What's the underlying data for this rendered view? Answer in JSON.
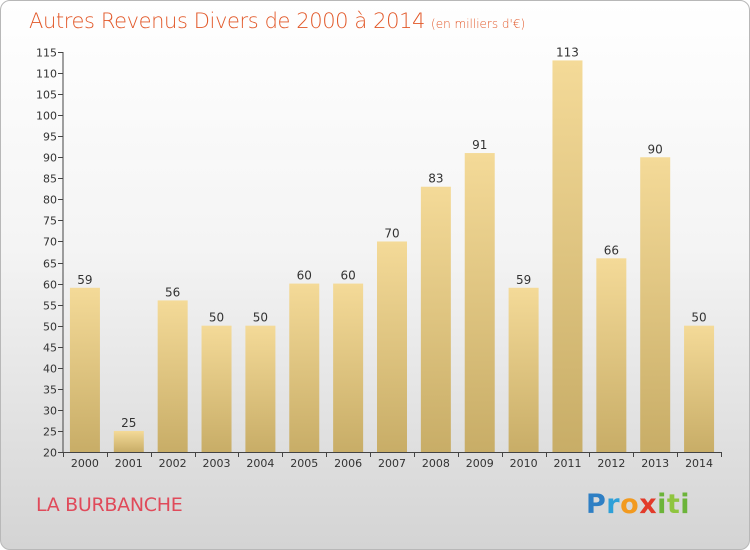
{
  "title": "Autres Revenus Divers de 2000 à 2014",
  "subtitle": "(en milliers d'€)",
  "commune": "LA BURBANCHE",
  "brand": "Proxiti",
  "colors": {
    "title": "#e2592a",
    "commune": "#e04a5a",
    "bar_top": "#f4da98",
    "bar_bottom": "#c8ad67",
    "axis": "#444444"
  },
  "chart_data": {
    "type": "bar",
    "categories": [
      "2000",
      "2001",
      "2002",
      "2003",
      "2004",
      "2005",
      "2006",
      "2007",
      "2008",
      "2009",
      "2010",
      "2011",
      "2012",
      "2013",
      "2014"
    ],
    "values": [
      59,
      25,
      56,
      50,
      50,
      60,
      60,
      70,
      83,
      91,
      59,
      113,
      66,
      90,
      50
    ],
    "ylim": [
      20,
      115
    ],
    "yticks": [
      20,
      25,
      30,
      35,
      40,
      45,
      50,
      55,
      60,
      65,
      70,
      75,
      80,
      85,
      90,
      95,
      100,
      105,
      110,
      115
    ],
    "grid": false,
    "legend": "none",
    "data_labels": true
  }
}
